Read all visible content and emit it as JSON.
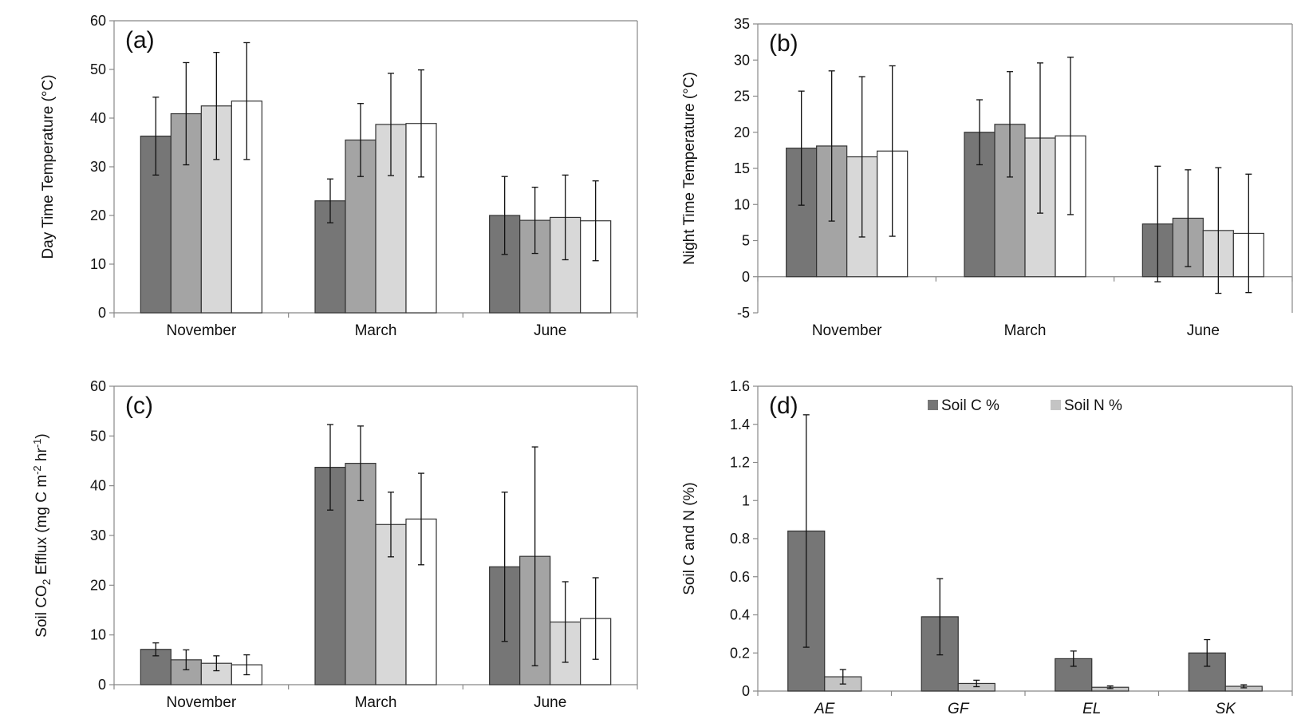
{
  "chart_data": [
    {
      "type": "bar",
      "panel_label": "(a)",
      "ylabel": "Day Time Temperature (°C)",
      "ylim": [
        0,
        60
      ],
      "yticks": [
        0,
        10,
        20,
        30,
        40,
        50,
        60
      ],
      "categories": [
        "November",
        "March",
        "June"
      ],
      "series": [
        {
          "color": "#767676",
          "values": [
            36.3,
            23.0,
            20.0
          ],
          "errors": [
            8.0,
            4.5,
            8.0
          ]
        },
        {
          "color": "#a4a4a4",
          "values": [
            40.9,
            35.5,
            19.0
          ],
          "errors": [
            10.5,
            7.5,
            6.8
          ]
        },
        {
          "color": "#d8d8d8",
          "values": [
            42.5,
            38.7,
            19.6
          ],
          "errors": [
            11.0,
            10.5,
            8.7
          ]
        },
        {
          "color": "#ffffff",
          "values": [
            43.5,
            38.9,
            18.9
          ],
          "errors": [
            12.0,
            11.0,
            8.2
          ]
        }
      ]
    },
    {
      "type": "bar",
      "panel_label": "(b)",
      "ylabel": "Night Time Temperature (°C)",
      "ylim": [
        -5,
        35
      ],
      "yticks": [
        -5,
        0,
        5,
        10,
        15,
        20,
        25,
        30,
        35
      ],
      "categories": [
        "November",
        "March",
        "June"
      ],
      "series": [
        {
          "color": "#767676",
          "values": [
            17.8,
            20.0,
            7.3
          ],
          "errors": [
            7.9,
            4.5,
            8.0
          ]
        },
        {
          "color": "#a4a4a4",
          "values": [
            18.1,
            21.1,
            8.1
          ],
          "errors": [
            10.4,
            7.3,
            6.7
          ]
        },
        {
          "color": "#d8d8d8",
          "values": [
            16.6,
            19.2,
            6.4
          ],
          "errors": [
            11.1,
            10.4,
            8.7
          ]
        },
        {
          "color": "#ffffff",
          "values": [
            17.4,
            19.5,
            6.0
          ],
          "errors": [
            11.8,
            10.9,
            8.2
          ]
        }
      ]
    },
    {
      "type": "bar",
      "panel_label": "(c)",
      "ylabel": "Soil CO2 Efflux (mg C m-2 hr-1)",
      "ylim": [
        0,
        60
      ],
      "yticks": [
        0,
        10,
        20,
        30,
        40,
        50,
        60
      ],
      "categories": [
        "November",
        "March",
        "June"
      ],
      "series": [
        {
          "color": "#767676",
          "values": [
            7.1,
            43.7,
            23.7
          ],
          "errors": [
            1.3,
            8.6,
            15.0
          ]
        },
        {
          "color": "#a4a4a4",
          "values": [
            5.0,
            44.5,
            25.8
          ],
          "errors": [
            2.0,
            7.5,
            22.0
          ]
        },
        {
          "color": "#d8d8d8",
          "values": [
            4.3,
            32.2,
            12.6
          ],
          "errors": [
            1.5,
            6.5,
            8.1
          ]
        },
        {
          "color": "#ffffff",
          "values": [
            4.0,
            33.3,
            13.3
          ],
          "errors": [
            2.0,
            9.2,
            8.2
          ]
        }
      ]
    },
    {
      "type": "bar",
      "panel_label": "(d)",
      "ylabel": "Soil C and N (%)",
      "ylim": [
        0,
        1.6
      ],
      "yticks": [
        0,
        0.2,
        0.4,
        0.6,
        0.8,
        1,
        1.2,
        1.4,
        1.6
      ],
      "categories": [
        "AE",
        "GF",
        "EL",
        "SK"
      ],
      "legend": "top",
      "series": [
        {
          "name": "Soil C %",
          "color": "#767676",
          "values": [
            0.84,
            0.39,
            0.17,
            0.2
          ],
          "errors": [
            0.61,
            0.2,
            0.04,
            0.07
          ]
        },
        {
          "name": "Soil N %",
          "color": "#c4c4c4",
          "values": [
            0.075,
            0.04,
            0.02,
            0.025
          ],
          "errors": [
            0.038,
            0.017,
            0.007,
            0.008
          ]
        }
      ]
    }
  ]
}
